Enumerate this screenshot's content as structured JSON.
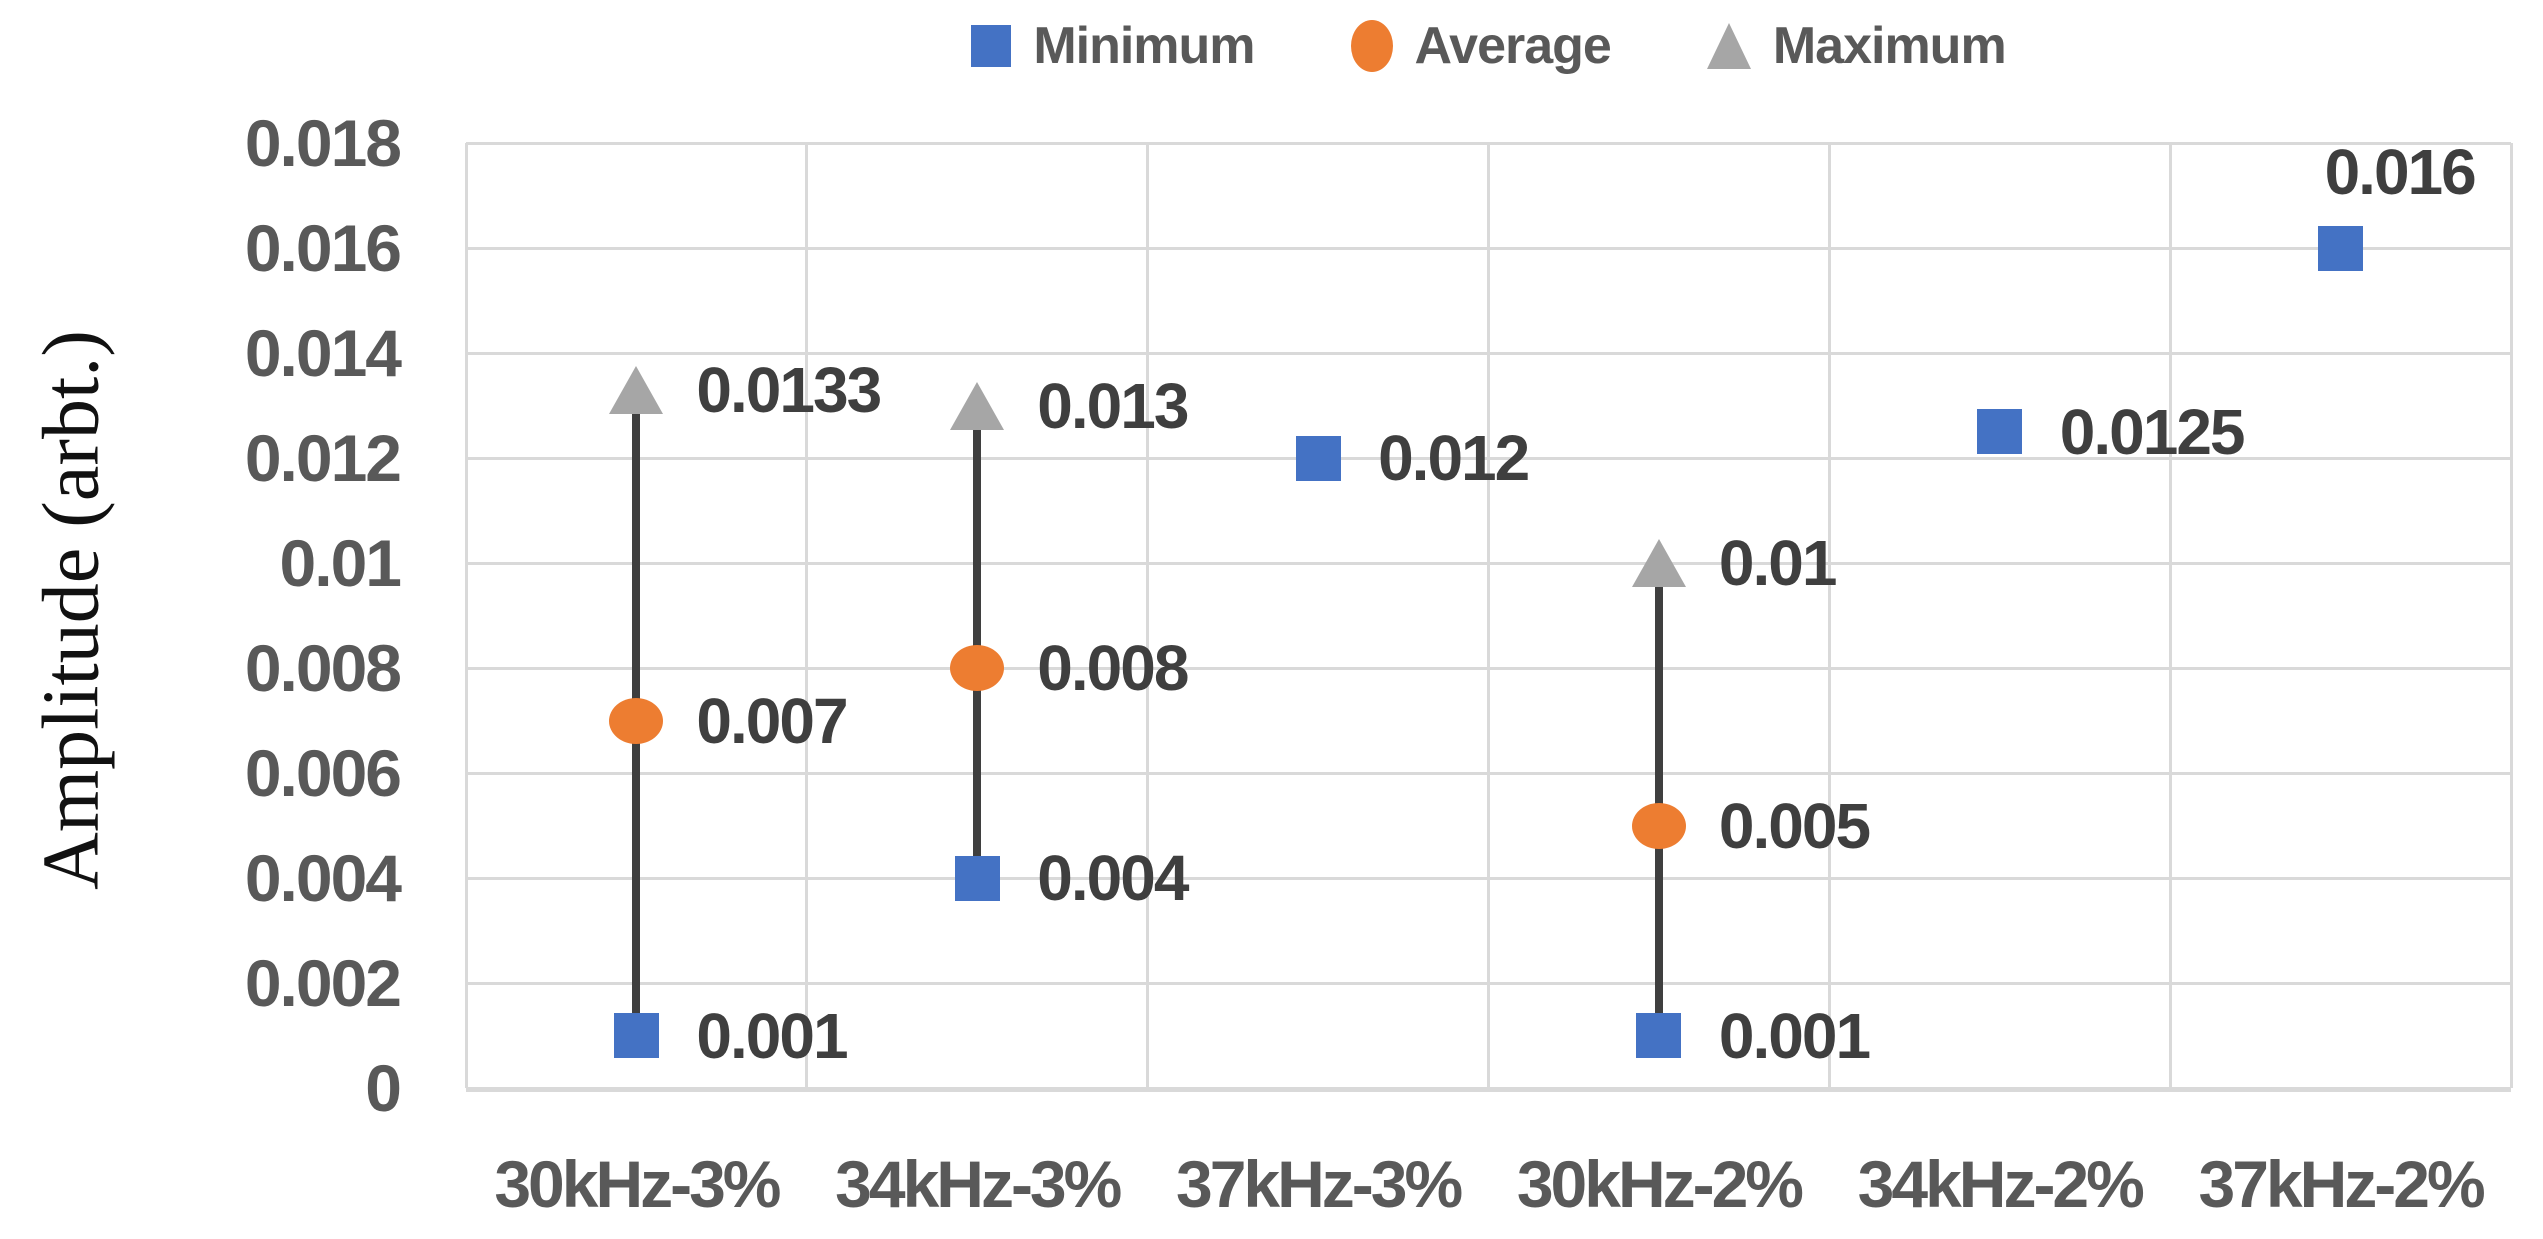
{
  "chart_data": {
    "type": "scatter",
    "title": "",
    "ylabel": "Amplitude (arbt.)",
    "xlabel": "",
    "categories": [
      "30kHz-3%",
      "34kHz-3%",
      "37kHz-3%",
      "30kHz-2%",
      "34kHz-2%",
      "37kHz-2%"
    ],
    "ylim": [
      0,
      0.018
    ],
    "ytick_labels": [
      "0.018",
      "0.016",
      "0.014",
      "0.012",
      "0.01",
      "0.008",
      "0.006",
      "0.004",
      "0.002",
      "0"
    ],
    "grid": "horizontal-and-vertical",
    "gridline_color": "#D9D9D9",
    "legend_position": "top-center",
    "series": [
      {
        "name": "Minimum",
        "marker": "square",
        "color": "#4472C4",
        "values": [
          0.001,
          0.004,
          0.012,
          0.001,
          0.0125,
          0.016
        ],
        "labels": [
          "0.001",
          "0.004",
          "0.012",
          "0.001",
          "0.0125",
          "0.016"
        ],
        "label_pos": [
          "right",
          "right",
          "right",
          "right",
          "right",
          "above"
        ]
      },
      {
        "name": "Average",
        "marker": "circle",
        "color": "#ED7D31",
        "values": [
          0.007,
          0.008,
          null,
          0.005,
          null,
          null
        ],
        "labels": [
          "0.007",
          "0.008",
          null,
          "0.005",
          null,
          null
        ],
        "label_pos": [
          "right",
          "right",
          null,
          "right",
          null,
          null
        ]
      },
      {
        "name": "Maximum",
        "marker": "triangle",
        "color": "#A6A6A6",
        "values": [
          0.0133,
          0.013,
          null,
          0.01,
          null,
          null
        ],
        "labels": [
          "0.0133",
          "0.013",
          null,
          "0.01",
          null,
          null
        ],
        "label_pos": [
          "right",
          "right",
          null,
          "right",
          null,
          null
        ]
      }
    ],
    "hi_lo_arrows": {
      "description": "vertical arrow line drawn from Minimum marker up to Maximum triangle for categories that have a Maximum value",
      "color": "#3F3F3F",
      "categories_with_arrow": [
        "30kHz-3%",
        "34kHz-3%",
        "30kHz-2%"
      ]
    }
  },
  "colors": {
    "minimum": "#4472C4",
    "average": "#ED7D31",
    "maximum": "#A6A6A6",
    "arrow_line": "#3F3F3F",
    "gridline": "#D9D9D9",
    "tick_text": "#595959",
    "data_label_text": "#3F3F3F",
    "axis_title_text": "#111111",
    "background": "#FFFFFF"
  }
}
